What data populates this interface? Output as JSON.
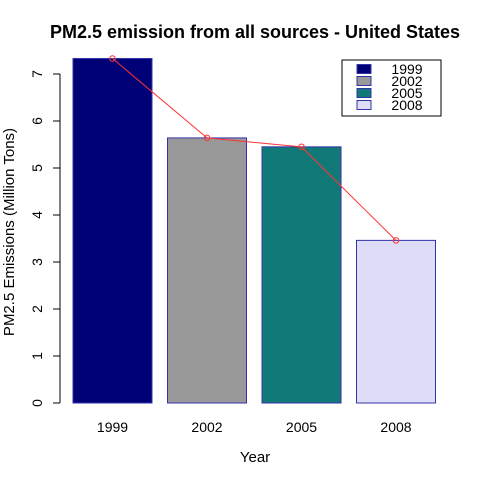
{
  "chart_data": {
    "type": "bar",
    "title": "PM2.5 emission from all sources - United States",
    "xlabel": "Year",
    "ylabel": "PM2.5 Emissions (Million Tons)",
    "categories": [
      "1999",
      "2002",
      "2005",
      "2008"
    ],
    "values": [
      7.33,
      5.64,
      5.45,
      3.46
    ],
    "bar_colors": [
      "#000077",
      "#999999",
      "#117A78",
      "#DDDDF7"
    ],
    "bar_border_color": "#3333AA",
    "overlay_line": {
      "values": [
        7.33,
        5.64,
        5.45,
        3.46
      ],
      "color": "#FF3333",
      "marker": "open-circle"
    },
    "yticks": [
      "0",
      "1",
      "2",
      "3",
      "4",
      "5",
      "6",
      "7"
    ],
    "ylim": [
      0,
      7.33
    ],
    "grid": false,
    "legend": {
      "position": "top-right",
      "entries": [
        "1999",
        "2002",
        "2005",
        "2008"
      ]
    }
  }
}
